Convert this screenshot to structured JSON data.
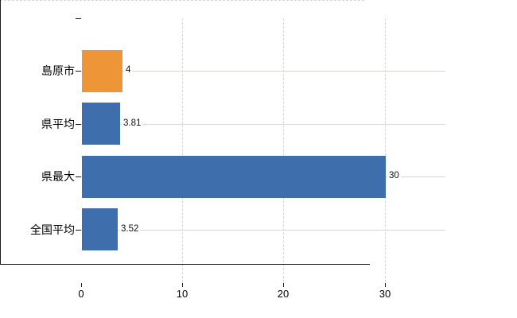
{
  "chart_data": {
    "type": "bar",
    "orientation": "horizontal",
    "categories": [
      "島原市",
      "県平均",
      "県最大",
      "全国平均"
    ],
    "values": [
      4,
      3.81,
      30,
      3.52
    ],
    "value_labels": [
      "4",
      "3.81",
      "30",
      "3.52"
    ],
    "bar_colors": [
      "#EE9637",
      "#3E6FAC",
      "#3E6FAC",
      "#3E6FAC"
    ],
    "x_tick_values": [
      0,
      10,
      20,
      30
    ],
    "x_tick_labels": [
      "0",
      "10",
      "20",
      "30"
    ],
    "xlim": [
      0,
      36
    ],
    "grid": true,
    "legend": false
  },
  "colors": {
    "background": "#ffffff",
    "axis": "#1c1c1c",
    "text": "#000000",
    "grid_horizontal": "#d4dacf",
    "grid_vertical": "#d9d3d6",
    "plot_top_border": "#d9d3d6",
    "bar_blue": "#3E6FAC",
    "bar_orange": "#EE9637"
  }
}
